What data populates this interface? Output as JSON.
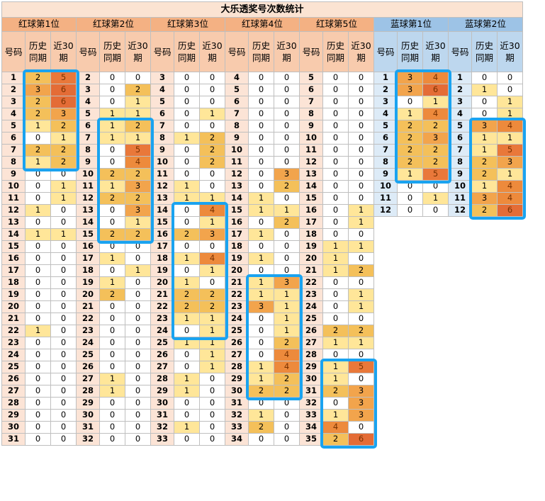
{
  "chart_data": {
    "type": "table",
    "title": "大乐透奖号次数统计",
    "column_labels": {
      "number": "号码",
      "history": "历史\n同期",
      "recent": "近30\n期"
    },
    "groups": [
      {
        "name": "红球第1位",
        "kind": "red",
        "rows": [
          [
            1,
            2,
            5
          ],
          [
            2,
            3,
            6
          ],
          [
            3,
            2,
            6
          ],
          [
            4,
            2,
            3
          ],
          [
            5,
            1,
            2
          ],
          [
            6,
            0,
            1
          ],
          [
            7,
            2,
            2
          ],
          [
            8,
            1,
            2
          ],
          [
            9,
            0,
            0
          ],
          [
            10,
            0,
            1
          ],
          [
            11,
            0,
            1
          ],
          [
            12,
            1,
            0
          ],
          [
            13,
            0,
            0
          ],
          [
            14,
            1,
            1
          ],
          [
            15,
            0,
            0
          ],
          [
            16,
            0,
            0
          ],
          [
            17,
            0,
            0
          ],
          [
            18,
            0,
            0
          ],
          [
            19,
            0,
            0
          ],
          [
            20,
            0,
            0
          ],
          [
            21,
            0,
            0
          ],
          [
            22,
            1,
            0
          ],
          [
            23,
            0,
            0
          ],
          [
            24,
            0,
            0
          ],
          [
            25,
            0,
            0
          ],
          [
            26,
            0,
            0
          ],
          [
            27,
            0,
            0
          ],
          [
            28,
            0,
            0
          ],
          [
            29,
            0,
            0
          ],
          [
            30,
            0,
            0
          ],
          [
            31,
            0,
            0
          ]
        ]
      },
      {
        "name": "红球第2位",
        "kind": "red",
        "rows": [
          [
            2,
            0,
            0
          ],
          [
            3,
            0,
            2
          ],
          [
            4,
            0,
            1
          ],
          [
            5,
            1,
            1
          ],
          [
            6,
            1,
            2
          ],
          [
            7,
            1,
            1
          ],
          [
            8,
            0,
            5
          ],
          [
            9,
            0,
            4
          ],
          [
            10,
            2,
            2
          ],
          [
            11,
            1,
            3
          ],
          [
            12,
            2,
            2
          ],
          [
            13,
            0,
            3
          ],
          [
            14,
            0,
            1
          ],
          [
            15,
            2,
            2
          ],
          [
            16,
            0,
            0
          ],
          [
            17,
            1,
            0
          ],
          [
            18,
            0,
            1
          ],
          [
            19,
            1,
            0
          ],
          [
            20,
            2,
            0
          ],
          [
            21,
            0,
            0
          ],
          [
            22,
            0,
            0
          ],
          [
            23,
            0,
            0
          ],
          [
            24,
            0,
            0
          ],
          [
            25,
            0,
            0
          ],
          [
            26,
            0,
            0
          ],
          [
            27,
            1,
            0
          ],
          [
            28,
            1,
            0
          ],
          [
            29,
            0,
            0
          ],
          [
            30,
            0,
            0
          ],
          [
            31,
            0,
            0
          ],
          [
            32,
            0,
            0
          ]
        ]
      },
      {
        "name": "红球第3位",
        "kind": "red",
        "rows": [
          [
            3,
            0,
            0
          ],
          [
            4,
            0,
            0
          ],
          [
            5,
            0,
            0
          ],
          [
            6,
            0,
            1
          ],
          [
            7,
            0,
            0
          ],
          [
            8,
            1,
            2
          ],
          [
            9,
            0,
            2
          ],
          [
            10,
            0,
            2
          ],
          [
            11,
            0,
            0
          ],
          [
            12,
            1,
            0
          ],
          [
            13,
            1,
            1
          ],
          [
            14,
            0,
            4
          ],
          [
            15,
            0,
            1
          ],
          [
            16,
            2,
            3
          ],
          [
            17,
            0,
            0
          ],
          [
            18,
            1,
            4
          ],
          [
            19,
            0,
            1
          ],
          [
            20,
            1,
            0
          ],
          [
            21,
            2,
            2
          ],
          [
            22,
            2,
            2
          ],
          [
            23,
            1,
            1
          ],
          [
            24,
            0,
            1
          ],
          [
            25,
            1,
            1
          ],
          [
            26,
            0,
            1
          ],
          [
            27,
            0,
            1
          ],
          [
            28,
            1,
            0
          ],
          [
            29,
            1,
            0
          ],
          [
            30,
            0,
            0
          ],
          [
            31,
            0,
            0
          ],
          [
            32,
            1,
            0
          ],
          [
            33,
            0,
            0
          ]
        ]
      },
      {
        "name": "红球第4位",
        "kind": "red",
        "rows": [
          [
            4,
            0,
            0
          ],
          [
            5,
            0,
            0
          ],
          [
            6,
            0,
            0
          ],
          [
            7,
            0,
            0
          ],
          [
            8,
            0,
            0
          ],
          [
            9,
            0,
            0
          ],
          [
            10,
            0,
            0
          ],
          [
            11,
            0,
            0
          ],
          [
            12,
            0,
            3
          ],
          [
            13,
            0,
            2
          ],
          [
            14,
            1,
            0
          ],
          [
            15,
            1,
            1
          ],
          [
            16,
            0,
            2
          ],
          [
            17,
            1,
            0
          ],
          [
            18,
            0,
            0
          ],
          [
            19,
            1,
            0
          ],
          [
            20,
            0,
            0
          ],
          [
            21,
            1,
            3
          ],
          [
            22,
            1,
            1
          ],
          [
            23,
            3,
            1
          ],
          [
            24,
            0,
            1
          ],
          [
            25,
            0,
            1
          ],
          [
            26,
            0,
            2
          ],
          [
            27,
            0,
            4
          ],
          [
            28,
            1,
            4
          ],
          [
            29,
            1,
            2
          ],
          [
            30,
            2,
            2
          ],
          [
            31,
            0,
            0
          ],
          [
            32,
            1,
            0
          ],
          [
            33,
            2,
            0
          ],
          [
            34,
            0,
            0
          ]
        ]
      },
      {
        "name": "红球第5位",
        "kind": "red",
        "rows": [
          [
            5,
            0,
            0
          ],
          [
            6,
            0,
            0
          ],
          [
            7,
            0,
            0
          ],
          [
            8,
            0,
            0
          ],
          [
            9,
            0,
            0
          ],
          [
            10,
            0,
            0
          ],
          [
            11,
            0,
            0
          ],
          [
            12,
            0,
            0
          ],
          [
            13,
            0,
            0
          ],
          [
            14,
            0,
            0
          ],
          [
            15,
            0,
            0
          ],
          [
            16,
            0,
            1
          ],
          [
            17,
            0,
            1
          ],
          [
            18,
            0,
            0
          ],
          [
            19,
            1,
            1
          ],
          [
            20,
            1,
            0
          ],
          [
            21,
            1,
            2
          ],
          [
            22,
            0,
            0
          ],
          [
            23,
            0,
            1
          ],
          [
            24,
            0,
            1
          ],
          [
            25,
            0,
            0
          ],
          [
            26,
            2,
            2
          ],
          [
            27,
            1,
            1
          ],
          [
            28,
            0,
            0
          ],
          [
            29,
            1,
            5
          ],
          [
            30,
            1,
            0
          ],
          [
            31,
            2,
            3
          ],
          [
            32,
            0,
            3
          ],
          [
            33,
            1,
            3
          ],
          [
            34,
            4,
            0
          ],
          [
            35,
            2,
            6
          ]
        ]
      },
      {
        "name": "蓝球第1位",
        "kind": "blue",
        "rows": [
          [
            1,
            3,
            4
          ],
          [
            2,
            3,
            6
          ],
          [
            3,
            0,
            1
          ],
          [
            4,
            1,
            4
          ],
          [
            5,
            2,
            2
          ],
          [
            6,
            2,
            3
          ],
          [
            7,
            2,
            2
          ],
          [
            8,
            2,
            2
          ],
          [
            9,
            1,
            5
          ],
          [
            10,
            0,
            0
          ],
          [
            11,
            0,
            1
          ],
          [
            12,
            0,
            0
          ]
        ]
      },
      {
        "name": "蓝球第2位",
        "kind": "blue",
        "rows": [
          [
            1,
            0,
            0
          ],
          [
            2,
            1,
            0
          ],
          [
            3,
            0,
            1
          ],
          [
            4,
            0,
            1
          ],
          [
            5,
            3,
            4
          ],
          [
            6,
            1,
            1
          ],
          [
            7,
            1,
            5
          ],
          [
            8,
            2,
            3
          ],
          [
            9,
            2,
            1
          ],
          [
            10,
            1,
            4
          ],
          [
            11,
            3,
            4
          ],
          [
            12,
            2,
            6
          ]
        ]
      }
    ]
  },
  "palette": {
    "zero": "#ffffff",
    "one": "#ffe699",
    "two": "#f4c05a",
    "three": "#f2a44c",
    "four": "#ed8a3c",
    "five": "#e9783a",
    "six": "#e46c36",
    "highlight_box": "#1aa3f0"
  },
  "highlights": [
    {
      "group": 0,
      "start_row": 0,
      "end_row": 7
    },
    {
      "group": 1,
      "start_row": 4,
      "end_row": 13
    },
    {
      "group": 2,
      "start_row": 11,
      "end_row": 21
    },
    {
      "group": 3,
      "start_row": 17,
      "end_row": 26
    },
    {
      "group": 4,
      "start_row": 24,
      "end_row": 30
    },
    {
      "group": 5,
      "start_row": 0,
      "end_row": 8
    },
    {
      "group": 6,
      "start_row": 4,
      "end_row": 11
    }
  ]
}
